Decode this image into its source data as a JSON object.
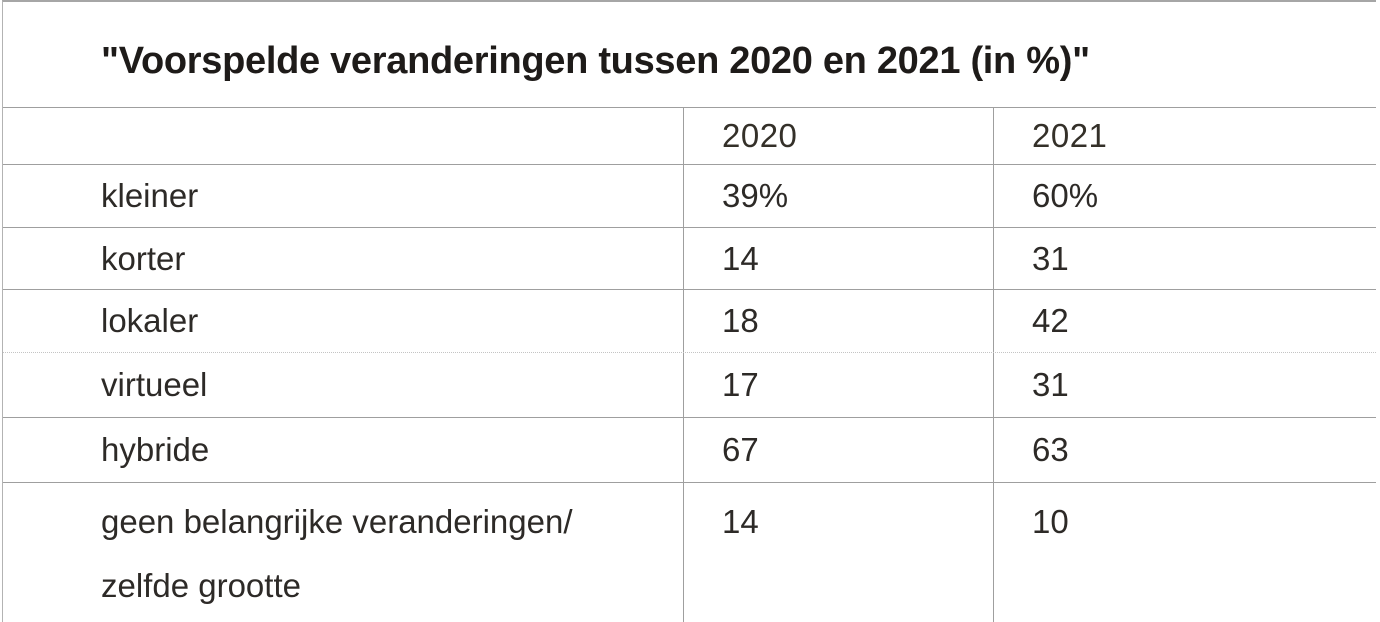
{
  "page": {
    "title": "\"Voorspelde veranderingen tussen 2020 en 2021 (in %)\""
  },
  "table": {
    "column_headers": [
      "2020",
      "2021"
    ],
    "rows": [
      {
        "label": "kleiner",
        "v2020": "39%",
        "v2021": "60%"
      },
      {
        "label": "korter",
        "v2020": "14",
        "v2021": "31"
      },
      {
        "label": "lokaler",
        "v2020": "18",
        "v2021": "42"
      },
      {
        "label": "virtueel",
        "v2020": "17",
        "v2021": "31"
      },
      {
        "label": "hybride",
        "v2020": "67",
        "v2021": "63"
      },
      {
        "label": "geen belangrijke veranderingen/ zelfde grootte",
        "label_lines": [
          "geen belangrijke veranderingen/",
          "zelfde grootte"
        ],
        "v2020": "14",
        "v2021": "10"
      }
    ]
  },
  "chart_data": {
    "type": "table",
    "title": "Voorspelde veranderingen tussen 2020 en 2021 (in %)",
    "categories": [
      "kleiner",
      "korter",
      "lokaler",
      "virtueel",
      "hybride",
      "geen belangrijke veranderingen/zelfde grootte"
    ],
    "series": [
      {
        "name": "2020",
        "values": [
          39,
          14,
          18,
          17,
          67,
          14
        ]
      },
      {
        "name": "2021",
        "values": [
          60,
          31,
          42,
          31,
          63,
          10
        ]
      }
    ],
    "unit": "percent",
    "layout": {
      "first_value_row_shows_percent_sign": true,
      "grid": true
    }
  },
  "colors": {
    "background": "#ffffff",
    "border": "#9f9f9f",
    "border_light": "#c4c4c4",
    "text": "#2d2a27",
    "title_text": "#1e1b19"
  }
}
